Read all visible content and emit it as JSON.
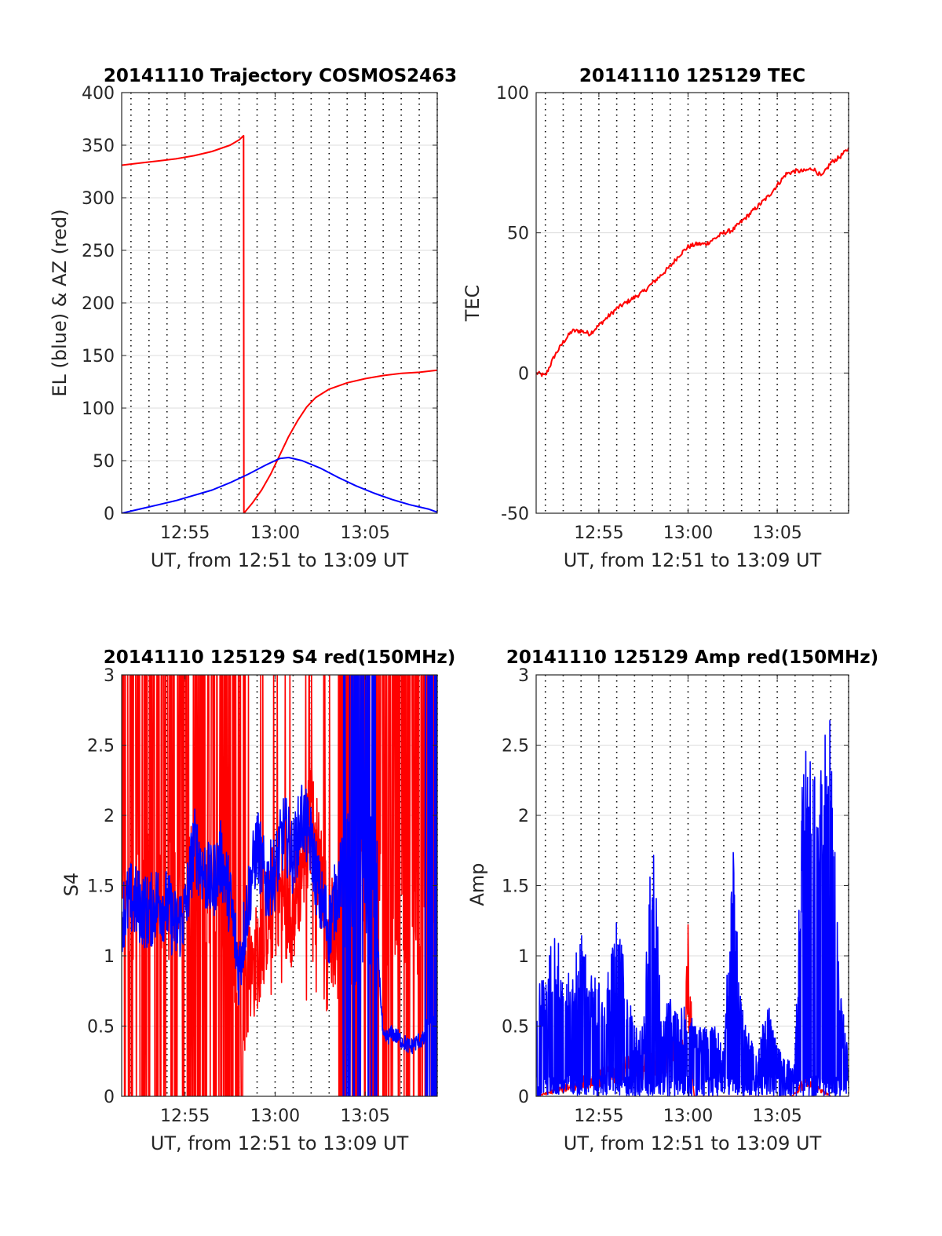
{
  "chart_data": [
    {
      "type": "line",
      "title": "20141110 Trajectory COSMOS2463",
      "xlabel": "UT, from 12:51 to 13:09 UT",
      "ylabel": "EL (blue) & AZ (red)",
      "xlim": [
        "12:51:29",
        "13:09:00"
      ],
      "ylim": [
        0,
        400
      ],
      "yticks": [
        0,
        50,
        100,
        150,
        200,
        250,
        300,
        350,
        400
      ],
      "xticks": [
        "12:55",
        "13:00",
        "13:05"
      ],
      "grid": true,
      "series": [
        {
          "name": "AZ (red)",
          "color": "#ff0000",
          "x": [
            "12:51:29",
            "12:52:30",
            "12:53:30",
            "12:54:30",
            "12:55:30",
            "12:56:30",
            "12:57:30",
            "12:58:00",
            "12:58:15",
            "12:58:16",
            "12:58:45",
            "12:59:15",
            "12:59:45",
            "13:00:15",
            "13:00:45",
            "13:01:15",
            "13:01:45",
            "13:02:15",
            "13:03:00",
            "13:04:00",
            "13:05:00",
            "13:06:00",
            "13:07:00",
            "13:08:00",
            "13:09:00"
          ],
          "values": [
            331,
            333,
            335,
            337,
            340,
            344,
            350,
            355,
            359,
            0,
            10,
            22,
            37,
            55,
            73,
            88,
            101,
            110,
            118,
            124,
            128,
            131,
            133,
            134,
            136
          ]
        },
        {
          "name": "EL (blue)",
          "color": "#0000ff",
          "x": [
            "12:51:29",
            "12:52:30",
            "12:53:30",
            "12:54:30",
            "12:55:30",
            "12:56:30",
            "12:57:30",
            "12:58:30",
            "12:59:30",
            "13:00:15",
            "13:00:45",
            "13:01:30",
            "13:02:30",
            "13:03:30",
            "13:04:30",
            "13:05:30",
            "13:06:30",
            "13:07:30",
            "13:08:30",
            "13:09:00"
          ],
          "values": [
            0,
            4,
            8,
            12,
            17,
            22,
            29,
            37,
            46,
            52,
            53,
            50,
            43,
            34,
            26,
            19,
            13,
            8,
            4,
            1
          ]
        }
      ]
    },
    {
      "type": "line",
      "title": "20141110 125129 TEC",
      "xlabel": "UT, from 12:51 to 13:09 UT",
      "ylabel": "TEC",
      "xlim": [
        "12:51:29",
        "13:09:00"
      ],
      "ylim": [
        -50,
        100
      ],
      "yticks": [
        -50,
        0,
        50,
        100
      ],
      "xticks": [
        "12:55",
        "13:00",
        "13:05"
      ],
      "grid": true,
      "series": [
        {
          "name": "TEC",
          "color": "#ff0000",
          "x": [
            "12:51:30",
            "12:52:00",
            "12:52:30",
            "12:53:00",
            "12:53:30",
            "12:54:00",
            "12:54:30",
            "12:55:00",
            "12:55:30",
            "12:56:00",
            "12:56:30",
            "12:57:00",
            "12:57:30",
            "12:58:00",
            "12:58:30",
            "12:59:00",
            "12:59:30",
            "13:00:00",
            "13:00:30",
            "13:01:00",
            "13:01:30",
            "13:02:00",
            "13:02:30",
            "13:03:00",
            "13:03:30",
            "13:04:00",
            "13:04:30",
            "13:05:00",
            "13:05:30",
            "13:06:00",
            "13:06:30",
            "13:07:00",
            "13:07:30",
            "13:08:00",
            "13:08:30",
            "13:09:00"
          ],
          "values": [
            0,
            -1,
            6,
            11,
            15,
            15,
            14,
            17,
            20,
            23,
            25,
            27,
            29,
            32,
            35,
            38,
            42,
            45,
            46,
            46,
            48,
            50,
            51,
            54,
            57,
            60,
            63,
            67,
            71,
            72,
            72,
            73,
            70,
            75,
            77,
            80
          ]
        }
      ]
    },
    {
      "type": "line",
      "title": "20141110 125129 S4 red(150MHz)",
      "xlabel": "UT, from 12:51 to 13:09 UT",
      "ylabel": "S4",
      "xlim": [
        "12:51:29",
        "13:09:00"
      ],
      "ylim": [
        0,
        3
      ],
      "yticks": [
        0,
        0.5,
        1,
        1.5,
        2,
        2.5,
        3
      ],
      "xticks": [
        "12:55",
        "13:00",
        "13:05"
      ],
      "grid": true,
      "series": [
        {
          "color": "#ff0000",
          "style": "noisy, saturating between 0 and 3 before 12:58:15 and after 13:03:30",
          "x": [
            "12:51:30",
            "12:53:00",
            "12:54:30",
            "12:56:00",
            "12:57:30",
            "12:58:15",
            "12:59:00",
            "13:00:00",
            "13:01:00",
            "13:02:00",
            "13:03:00",
            "13:04:00",
            "13:05:00",
            "13:06:00",
            "13:07:00",
            "13:08:00",
            "13:09:00"
          ],
          "values": [
            1.5,
            1.4,
            1.4,
            1.5,
            1.4,
            0.7,
            1.0,
            1.5,
            1.3,
            2.0,
            1.2,
            1.0,
            1.6,
            1.5,
            1.2,
            0.9,
            1.5
          ]
        },
        {
          "color": "#0000ff",
          "x": [
            "12:51:30",
            "12:52:00",
            "12:52:30",
            "12:53:00",
            "12:53:30",
            "12:54:00",
            "12:54:30",
            "12:55:00",
            "12:55:30",
            "12:56:00",
            "12:56:30",
            "12:57:00",
            "12:57:30",
            "12:58:00",
            "12:58:30",
            "12:59:00",
            "12:59:30",
            "13:00:00",
            "13:00:30",
            "13:01:00",
            "13:01:30",
            "13:02:00",
            "13:02:30",
            "13:03:00",
            "13:03:30",
            "13:04:00",
            "13:04:30",
            "13:05:00",
            "13:05:30",
            "13:06:00",
            "13:06:30",
            "13:07:00",
            "13:07:30",
            "13:08:00",
            "13:08:30",
            "13:09:00"
          ],
          "values": [
            1.3,
            1.4,
            1.35,
            1.3,
            1.4,
            1.35,
            1.2,
            1.3,
            1.8,
            1.6,
            1.5,
            1.7,
            1.4,
            0.9,
            1.4,
            1.8,
            1.5,
            1.6,
            1.9,
            1.7,
            2.0,
            1.8,
            1.4,
            1.2,
            1.5,
            1.7,
            1.4,
            1.6,
            1.5,
            0.4,
            0.45,
            0.4,
            0.35,
            0.4,
            0.4,
            0.45
          ]
        }
      ]
    },
    {
      "type": "line",
      "title": "20141110 125129 Amp red(150MHz)",
      "xlabel": "UT, from 12:51 to 13:09 UT",
      "ylabel": "Amp",
      "xlim": [
        "12:51:29",
        "13:09:00"
      ],
      "ylim": [
        0,
        3
      ],
      "yticks": [
        0,
        0.5,
        1,
        1.5,
        2,
        2.5,
        3
      ],
      "xticks": [
        "12:55",
        "13:00",
        "13:05"
      ],
      "grid": true,
      "series": [
        {
          "color": "#ff0000",
          "x": [
            "12:51:30",
            "12:59:50",
            "13:00:00",
            "13:00:10",
            "13:00:20",
            "13:05:50",
            "13:06:30",
            "13:07:00",
            "13:07:30",
            "13:08:00"
          ],
          "values": [
            0.0,
            0.4,
            1.23,
            0.6,
            0.0,
            0.0,
            0.12,
            0.08,
            0.05,
            0.0
          ]
        },
        {
          "color": "#0000ff",
          "x": [
            "12:51:30",
            "12:52:00",
            "12:52:30",
            "12:53:00",
            "12:53:30",
            "12:54:00",
            "12:54:30",
            "12:55:00",
            "12:55:30",
            "12:56:00",
            "12:56:30",
            "12:57:00",
            "12:57:30",
            "12:58:00",
            "12:58:30",
            "12:59:00",
            "12:59:30",
            "13:00:00",
            "13:00:30",
            "13:01:00",
            "13:01:30",
            "13:02:00",
            "13:02:30",
            "13:03:00",
            "13:03:30",
            "13:04:00",
            "13:04:30",
            "13:05:00",
            "13:05:30",
            "13:06:00",
            "13:06:30",
            "13:07:00",
            "13:07:30",
            "13:08:00",
            "13:08:30",
            "13:09:00"
          ],
          "values": [
            0.8,
            0.9,
            1.3,
            0.9,
            0.9,
            1.2,
            0.9,
            0.8,
            0.9,
            1.3,
            0.9,
            0.5,
            0.5,
            2.15,
            0.6,
            0.7,
            0.7,
            0.6,
            0.5,
            0.5,
            0.5,
            0.4,
            1.85,
            0.7,
            0.4,
            0.4,
            0.7,
            0.35,
            0.3,
            0.3,
            2.7,
            2.3,
            2.5,
            2.75,
            0.8,
            0.3
          ]
        }
      ]
    }
  ]
}
